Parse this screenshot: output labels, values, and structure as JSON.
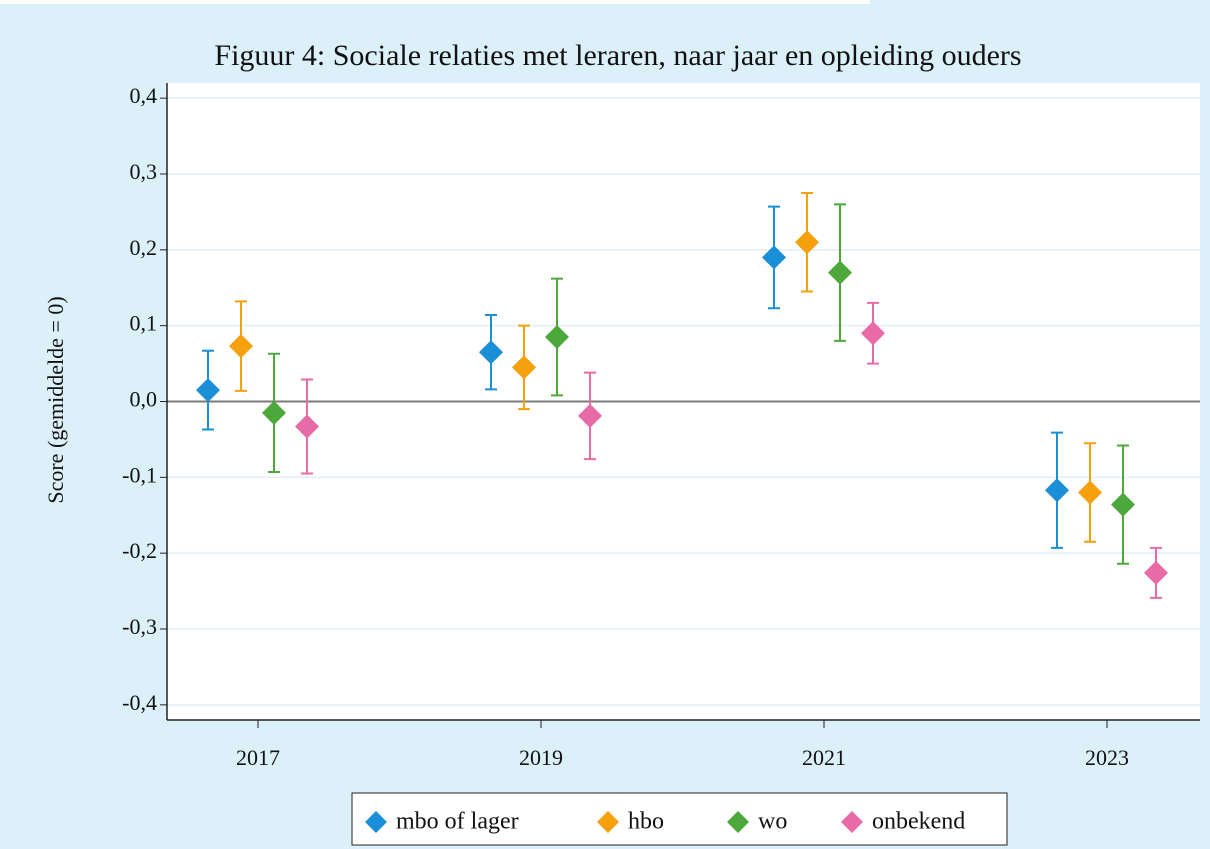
{
  "chart_data": {
    "type": "errorbar-dot",
    "title": "Figuur 4: Sociale relaties met leraren, naar jaar en opleiding ouders",
    "y_label": "Score (gemiddelde = 0)",
    "categories": [
      "2017",
      "2019",
      "2021",
      "2023"
    ],
    "series": [
      {
        "name": "mbo of lager",
        "color": "#1a8fd8",
        "values": [
          0.015,
          0.065,
          0.19,
          -0.117
        ],
        "errors": [
          0.052,
          0.049,
          0.067,
          0.076
        ]
      },
      {
        "name": "hbo",
        "color": "#f5a00c",
        "values": [
          0.073,
          0.045,
          0.21,
          -0.12
        ],
        "errors": [
          0.059,
          0.055,
          0.065,
          0.065
        ]
      },
      {
        "name": "wo",
        "color": "#4ca83a",
        "values": [
          -0.015,
          0.085,
          0.17,
          -0.136
        ],
        "errors": [
          0.078,
          0.077,
          0.09,
          0.078
        ]
      },
      {
        "name": "onbekend",
        "color": "#e86aa6",
        "values": [
          -0.033,
          -0.019,
          0.09,
          -0.226
        ],
        "errors": [
          0.062,
          0.057,
          0.04,
          0.033
        ]
      }
    ],
    "ylim": [
      -0.42,
      0.42
    ],
    "yticks": [
      {
        "value": -0.4,
        "label": "-0,4"
      },
      {
        "value": -0.3,
        "label": "-0,3"
      },
      {
        "value": -0.2,
        "label": "-0,2"
      },
      {
        "value": -0.1,
        "label": "-0,1"
      },
      {
        "value": 0,
        "label": "0,0"
      },
      {
        "value": 0.1,
        "label": "0,1"
      },
      {
        "value": 0.2,
        "label": "0,2"
      },
      {
        "value": 0.3,
        "label": "0,3"
      },
      {
        "value": 0.4,
        "label": "0,4"
      }
    ],
    "grid": true,
    "reference_line": 0,
    "legend": "bottom"
  }
}
